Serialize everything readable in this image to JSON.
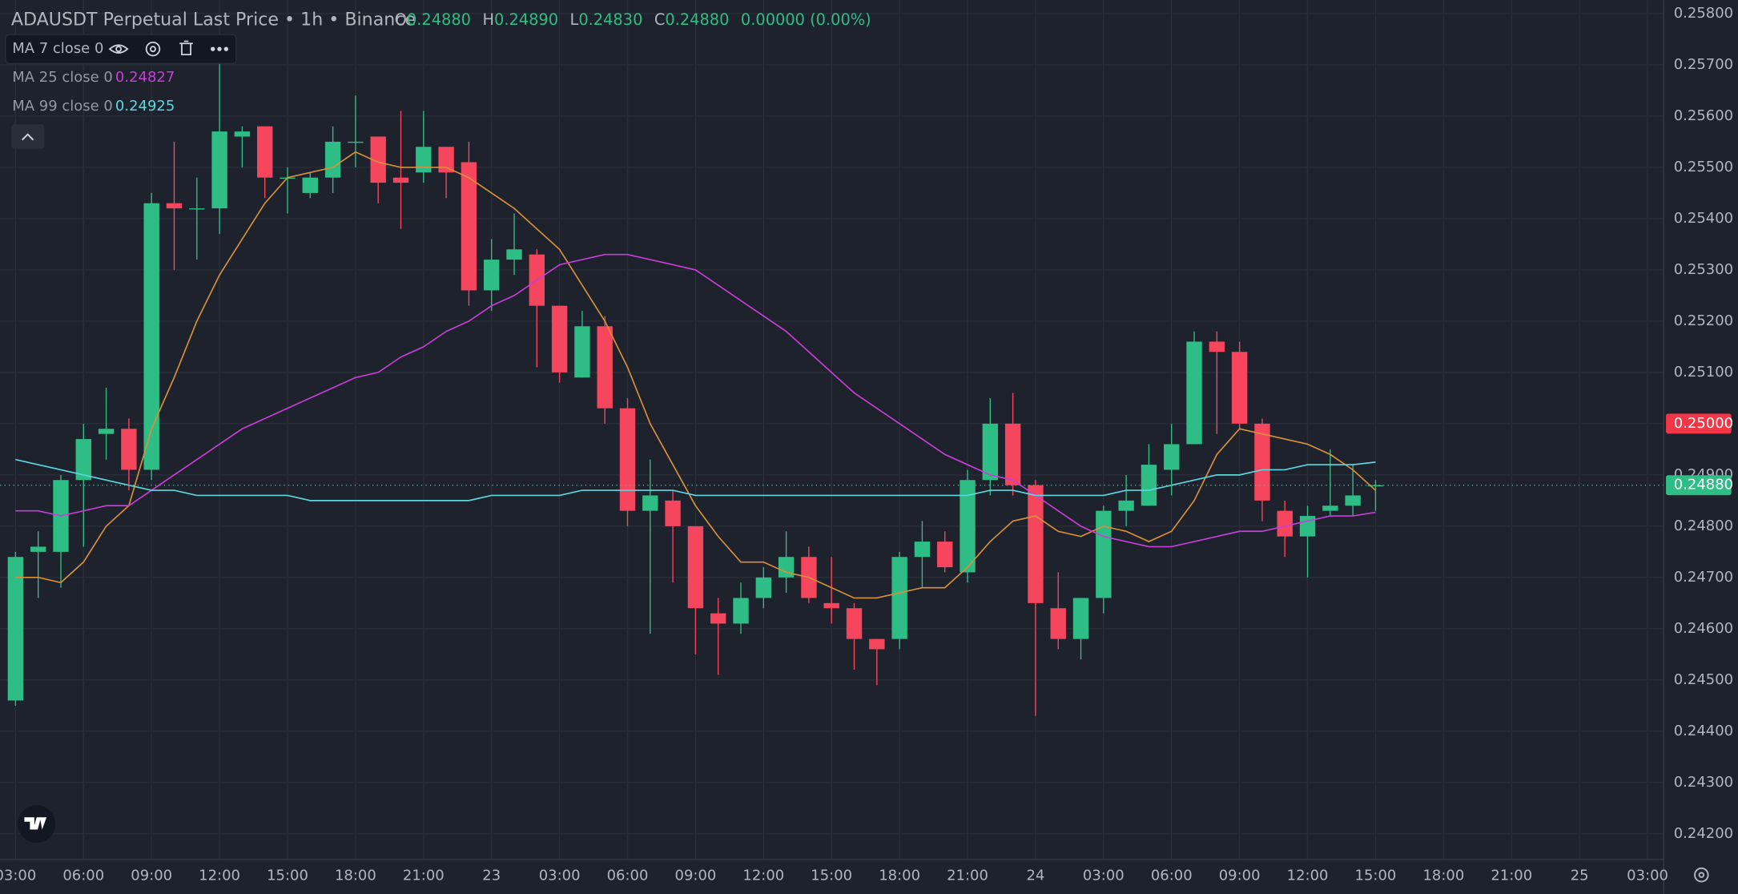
{
  "chart_data": {
    "type": "candlestick",
    "title": "ADAUSDT Perpetual Last Price • 1h • Binance",
    "ohlc_header": [
      {
        "label": "O",
        "value": "0.24880"
      },
      {
        "label": "H",
        "value": "0.24890"
      },
      {
        "label": "L",
        "value": "0.24830"
      },
      {
        "label": "C",
        "value": "0.24880"
      }
    ],
    "change": "0.00000 (0.00%)",
    "up_color": "#2ebd85",
    "down_color": "#f6465d",
    "candles": {
      "open": [
        0.2446,
        0.2475,
        0.2475,
        0.2489,
        0.2498,
        0.2499,
        0.2491,
        0.2543,
        0.2542,
        0.2542,
        0.2556,
        0.2558,
        0.2548,
        0.2545,
        0.2548,
        0.2555,
        0.2556,
        0.2548,
        0.2549,
        0.2554,
        0.2551,
        0.2526,
        0.2532,
        0.2533,
        0.2523,
        0.2509,
        0.2519,
        0.2503,
        0.2483,
        0.2485,
        0.248,
        0.2463,
        0.2461,
        0.2466,
        0.247,
        0.2474,
        0.2465,
        0.2464,
        0.2458,
        0.2458,
        0.2474,
        0.2477,
        0.2471,
        0.2489,
        0.25,
        0.2488,
        0.2464,
        0.2458,
        0.2466,
        0.2483,
        0.2484,
        0.2491,
        0.2496,
        0.2516,
        0.2514,
        0.25,
        0.2483,
        0.2478,
        0.2483,
        0.2484,
        0.2488
      ],
      "high": [
        0.2475,
        0.2479,
        0.249,
        0.25,
        0.2507,
        0.2501,
        0.2545,
        0.2555,
        0.2548,
        0.2571,
        0.2558,
        0.2558,
        0.255,
        0.2549,
        0.2558,
        0.2564,
        0.2556,
        0.2561,
        0.2561,
        0.2554,
        0.2555,
        0.2536,
        0.2541,
        0.2534,
        0.2523,
        0.2522,
        0.2521,
        0.2505,
        0.2493,
        0.2487,
        0.248,
        0.2466,
        0.2469,
        0.2472,
        0.2479,
        0.2476,
        0.2474,
        0.2465,
        0.2458,
        0.2475,
        0.2481,
        0.2479,
        0.2491,
        0.2505,
        0.2506,
        0.2489,
        0.2471,
        0.2466,
        0.2484,
        0.249,
        0.2496,
        0.25,
        0.2518,
        0.2518,
        0.2516,
        0.2501,
        0.2485,
        0.2484,
        0.2495,
        0.2492,
        0.2489
      ],
      "low": [
        0.2445,
        0.2466,
        0.2468,
        0.2476,
        0.2493,
        0.2487,
        0.2489,
        0.253,
        0.2532,
        0.2537,
        0.255,
        0.2544,
        0.2541,
        0.2544,
        0.2545,
        0.255,
        0.2543,
        0.2538,
        0.2547,
        0.2544,
        0.2523,
        0.2522,
        0.2529,
        0.2511,
        0.2508,
        0.2509,
        0.25,
        0.248,
        0.2459,
        0.2469,
        0.2455,
        0.2451,
        0.2459,
        0.2464,
        0.2467,
        0.2465,
        0.2461,
        0.2452,
        0.2449,
        0.2456,
        0.2468,
        0.2471,
        0.2469,
        0.2486,
        0.2486,
        0.2443,
        0.2456,
        0.2454,
        0.2463,
        0.248,
        0.2484,
        0.2486,
        0.2496,
        0.2498,
        0.2499,
        0.2481,
        0.2474,
        0.247,
        0.2482,
        0.2482,
        0.2483
      ],
      "close": [
        0.2474,
        0.2476,
        0.2489,
        0.2497,
        0.2499,
        0.2491,
        0.2543,
        0.2542,
        0.2542,
        0.2557,
        0.2557,
        0.2548,
        0.2548,
        0.2548,
        0.2555,
        0.2555,
        0.2547,
        0.2547,
        0.2554,
        0.2549,
        0.2526,
        0.2532,
        0.2534,
        0.2523,
        0.251,
        0.2519,
        0.2503,
        0.2483,
        0.2486,
        0.248,
        0.2464,
        0.2461,
        0.2466,
        0.247,
        0.2474,
        0.2466,
        0.2464,
        0.2458,
        0.2456,
        0.2474,
        0.2477,
        0.2472,
        0.2489,
        0.25,
        0.2488,
        0.2465,
        0.2458,
        0.2466,
        0.2483,
        0.2485,
        0.2492,
        0.2496,
        0.2516,
        0.2514,
        0.25,
        0.2485,
        0.2478,
        0.2482,
        0.2484,
        0.2486,
        0.2488
      ]
    },
    "series": [
      {
        "name": "MA 7 close 0",
        "color": "#d9903b",
        "values": [
          0.247,
          0.247,
          0.2469,
          0.2473,
          0.248,
          0.2484,
          0.2499,
          0.2509,
          0.252,
          0.2529,
          0.2536,
          0.2543,
          0.2548,
          0.2549,
          0.255,
          0.2553,
          0.2551,
          0.255,
          0.255,
          0.255,
          0.2548,
          0.2545,
          0.2542,
          0.2538,
          0.2534,
          0.2527,
          0.252,
          0.2511,
          0.25,
          0.2492,
          0.2484,
          0.2478,
          0.2473,
          0.2473,
          0.2471,
          0.247,
          0.2468,
          0.2466,
          0.2466,
          0.2467,
          0.2468,
          0.2468,
          0.2472,
          0.2477,
          0.2481,
          0.2482,
          0.2479,
          0.2478,
          0.248,
          0.2479,
          0.2477,
          0.2479,
          0.2485,
          0.2494,
          0.2499,
          0.2498,
          0.2497,
          0.2496,
          0.2494,
          0.2491,
          0.2487
        ]
      },
      {
        "name": "MA 25 close 0",
        "color": "#c83ed6",
        "last_label": "0.24827",
        "values": [
          0.2483,
          0.2483,
          0.2482,
          0.2483,
          0.2484,
          0.2484,
          0.2487,
          0.249,
          0.2493,
          0.2496,
          0.2499,
          0.2501,
          0.2503,
          0.2505,
          0.2507,
          0.2509,
          0.251,
          0.2513,
          0.2515,
          0.2518,
          0.252,
          0.2523,
          0.2525,
          0.2528,
          0.2531,
          0.2532,
          0.2533,
          0.2533,
          0.2532,
          0.2531,
          0.253,
          0.2527,
          0.2524,
          0.2521,
          0.2518,
          0.2514,
          0.251,
          0.2506,
          0.2503,
          0.25,
          0.2497,
          0.2494,
          0.2492,
          0.249,
          0.2489,
          0.2486,
          0.2483,
          0.248,
          0.2478,
          0.2477,
          0.2476,
          0.2476,
          0.2477,
          0.2478,
          0.2479,
          0.2479,
          0.248,
          0.2481,
          0.2482,
          0.2482,
          0.24827
        ]
      },
      {
        "name": "MA 99 close 0",
        "color": "#5ed6e0",
        "last_label": "0.24925",
        "values": [
          0.2493,
          0.2492,
          0.2491,
          0.249,
          0.2489,
          0.2488,
          0.2487,
          0.2487,
          0.2486,
          0.2486,
          0.2486,
          0.2486,
          0.2486,
          0.2485,
          0.2485,
          0.2485,
          0.2485,
          0.2485,
          0.2485,
          0.2485,
          0.2485,
          0.2486,
          0.2486,
          0.2486,
          0.2486,
          0.2487,
          0.2487,
          0.2487,
          0.2487,
          0.2487,
          0.2486,
          0.2486,
          0.2486,
          0.2486,
          0.2486,
          0.2486,
          0.2486,
          0.2486,
          0.2486,
          0.2486,
          0.2486,
          0.2486,
          0.2486,
          0.2487,
          0.2487,
          0.2486,
          0.2486,
          0.2486,
          0.2486,
          0.2487,
          0.2487,
          0.2488,
          0.2489,
          0.249,
          0.249,
          0.2491,
          0.2491,
          0.2492,
          0.2492,
          0.2492,
          0.24925
        ]
      }
    ],
    "x_labels": [
      "03:00",
      "06:00",
      "09:00",
      "12:00",
      "15:00",
      "18:00",
      "21:00",
      "23",
      "03:00",
      "06:00",
      "09:00",
      "12:00",
      "15:00",
      "18:00",
      "21:00",
      "24",
      "03:00",
      "06:00",
      "09:00",
      "12:00",
      "15:00",
      "18:00",
      "21:00",
      "25",
      "03:00"
    ],
    "ylim": [
      0.2415,
      0.25826
    ],
    "yticks": [
      {
        "value": 0.242,
        "label": "0.24200"
      },
      {
        "value": 0.243,
        "label": "0.24300"
      },
      {
        "value": 0.244,
        "label": "0.24400"
      },
      {
        "value": 0.245,
        "label": "0.24500"
      },
      {
        "value": 0.246,
        "label": "0.24600"
      },
      {
        "value": 0.247,
        "label": "0.24700"
      },
      {
        "value": 0.248,
        "label": "0.24800"
      },
      {
        "value": 0.249,
        "label": "0.24900"
      },
      {
        "value": 0.25,
        "label": "0.25000"
      },
      {
        "value": 0.251,
        "label": "0.25100"
      },
      {
        "value": 0.252,
        "label": "0.25200"
      },
      {
        "value": 0.253,
        "label": "0.25300"
      },
      {
        "value": 0.254,
        "label": "0.25400"
      },
      {
        "value": 0.255,
        "label": "0.25500"
      },
      {
        "value": 0.256,
        "label": "0.25600"
      },
      {
        "value": 0.257,
        "label": "0.25700"
      },
      {
        "value": 0.258,
        "label": "0.25800"
      }
    ],
    "price_markers": [
      {
        "value": 0.25,
        "label": "0.25000",
        "color": "#f23645",
        "line": false
      },
      {
        "value": 0.2488,
        "label": "0.24880",
        "color": "#2ebd85",
        "line": true
      }
    ],
    "grid": true
  }
}
